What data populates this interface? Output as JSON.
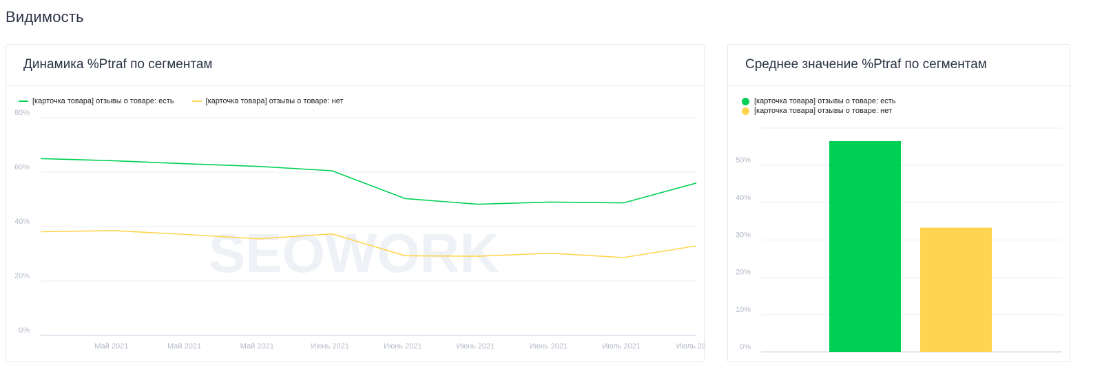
{
  "page": {
    "title": "Видимость"
  },
  "line_card": {
    "title": "Динамика %Ptraf по сегментам",
    "watermark": "SEOWORK"
  },
  "bar_card": {
    "title": "Среднее значение %Ptraf по сегментам"
  },
  "colors": {
    "green": "#00d154",
    "yellow": "#ffd54f",
    "grid": "#e9edf3",
    "axis": "#c7cfe0",
    "tick": "#b3b9c6"
  },
  "chart_data": [
    {
      "type": "line",
      "title": "Динамика %Ptraf по сегментам",
      "x": [
        "",
        "Май 2021",
        "Май 2021",
        "Май 2021",
        "Июнь 2021",
        "Июнь 2021",
        "Июнь 2021",
        "Июнь 2021",
        "Июль 2021",
        "Июль 20..."
      ],
      "series": [
        {
          "name": "[карточка товара] отзывы о товаре: есть",
          "color": "#00d154",
          "values": [
            65,
            64.2,
            63.1,
            62.1,
            60.5,
            50.3,
            48.2,
            49,
            48.7,
            56
          ]
        },
        {
          "name": "[карточка товара] отзывы о товаре: нет",
          "color": "#ffd54f",
          "values": [
            38.1,
            38.5,
            37.1,
            35.5,
            37.3,
            29.3,
            29.1,
            30.2,
            28.6,
            32.9
          ]
        }
      ],
      "ylim": [
        0,
        80
      ],
      "yticks": [
        "0%",
        "20%",
        "40%",
        "60%",
        "80%"
      ],
      "legend": "top-left",
      "grid": true
    },
    {
      "type": "bar",
      "title": "Среднее значение %Ptraf по сегментам",
      "categories": [
        "[карточка товара] отзывы о товаре: есть",
        "[карточка товара] отзывы о товаре: нет"
      ],
      "values": [
        56.5,
        33.3
      ],
      "colors": [
        "#00d154",
        "#ffd54f"
      ],
      "ylim": [
        0,
        60
      ],
      "yticks": [
        "0%",
        "10%",
        "20%",
        "30%",
        "40%",
        "50%"
      ],
      "legend": "top-left",
      "grid": true
    }
  ]
}
